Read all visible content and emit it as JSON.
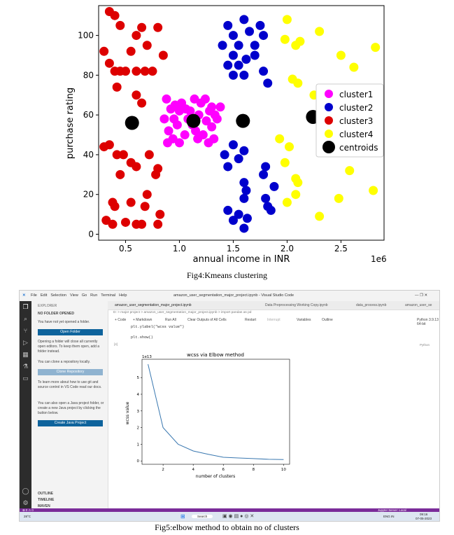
{
  "figure1": {
    "caption": "Fig4:Kmeans clustering",
    "chart_data": {
      "type": "scatter",
      "xlabel": "annual income in INR",
      "ylabel": "purchase rating",
      "x_offset_label": "1e6",
      "xticks": [
        "0.5",
        "1.0",
        "1.5",
        "2.0",
        "2.5"
      ],
      "yticks": [
        "0",
        "20",
        "40",
        "60",
        "80",
        "100"
      ],
      "xlim": [
        0.25,
        2.9
      ],
      "ylim": [
        -3,
        115
      ],
      "legend_position": "center-right",
      "series": [
        {
          "name": "cluster1",
          "color": "#ff00ff",
          "points": [
            [
              0.88,
              68
            ],
            [
              0.92,
              63
            ],
            [
              0.95,
              58
            ],
            [
              0.98,
              55
            ],
            [
              1.0,
              62
            ],
            [
              1.02,
              66
            ],
            [
              1.05,
              50
            ],
            [
              1.08,
              58
            ],
            [
              1.1,
              62
            ],
            [
              1.12,
              55
            ],
            [
              1.15,
              52
            ],
            [
              1.18,
              60
            ],
            [
              1.2,
              66
            ],
            [
              1.22,
              50
            ],
            [
              1.25,
              57
            ],
            [
              1.28,
              62
            ],
            [
              1.3,
              54
            ],
            [
              1.32,
              48
            ],
            [
              1.35,
              58
            ],
            [
              1.38,
              64
            ],
            [
              0.86,
              58
            ],
            [
              0.9,
              52
            ],
            [
              0.94,
              48
            ],
            [
              1.0,
              46
            ],
            [
              1.06,
              63
            ],
            [
              1.14,
              68
            ],
            [
              1.24,
              68
            ],
            [
              1.3,
              64
            ],
            [
              1.33,
              60
            ],
            [
              0.96,
              65
            ],
            [
              1.17,
              48
            ],
            [
              1.27,
              46
            ],
            [
              0.89,
              46
            ]
          ]
        },
        {
          "name": "cluster2",
          "color": "#0000cc",
          "points": [
            [
              1.45,
              105
            ],
            [
              1.5,
              100
            ],
            [
              1.55,
              95
            ],
            [
              1.6,
              108
            ],
            [
              1.65,
              102
            ],
            [
              1.7,
              95
            ],
            [
              1.75,
              105
            ],
            [
              1.78,
              100
            ],
            [
              1.5,
              90
            ],
            [
              1.55,
              85
            ],
            [
              1.45,
              85
            ],
            [
              1.6,
              80
            ],
            [
              1.62,
              88
            ],
            [
              1.78,
              82
            ],
            [
              1.82,
              76
            ],
            [
              1.42,
              40
            ],
            [
              1.5,
              45
            ],
            [
              1.55,
              38
            ],
            [
              1.6,
              42
            ],
            [
              1.45,
              34
            ],
            [
              1.78,
              30
            ],
            [
              1.8,
              34
            ],
            [
              1.6,
              26
            ],
            [
              1.62,
              22
            ],
            [
              1.6,
              18
            ],
            [
              1.82,
              14
            ],
            [
              1.85,
              12
            ],
            [
              1.8,
              18
            ],
            [
              1.45,
              12
            ],
            [
              1.5,
              7
            ],
            [
              1.55,
              10
            ],
            [
              1.6,
              3
            ],
            [
              1.63,
              8
            ],
            [
              1.88,
              24
            ],
            [
              1.7,
              90
            ],
            [
              1.5,
              80
            ],
            [
              1.4,
              95
            ]
          ]
        },
        {
          "name": "cluster3",
          "color": "#dd0000",
          "points": [
            [
              0.35,
              112
            ],
            [
              0.4,
              110
            ],
            [
              0.45,
              105
            ],
            [
              0.3,
              92
            ],
            [
              0.35,
              86
            ],
            [
              0.4,
              82
            ],
            [
              0.45,
              82
            ],
            [
              0.5,
              82
            ],
            [
              0.55,
              92
            ],
            [
              0.6,
              100
            ],
            [
              0.65,
              104
            ],
            [
              0.7,
              95
            ],
            [
              0.75,
              82
            ],
            [
              0.8,
              104
            ],
            [
              0.85,
              90
            ],
            [
              0.6,
              82
            ],
            [
              0.68,
              82
            ],
            [
              0.42,
              74
            ],
            [
              0.6,
              70
            ],
            [
              0.65,
              66
            ],
            [
              0.3,
              44
            ],
            [
              0.35,
              45
            ],
            [
              0.42,
              40
            ],
            [
              0.48,
              40
            ],
            [
              0.55,
              36
            ],
            [
              0.6,
              34
            ],
            [
              0.72,
              40
            ],
            [
              0.78,
              30
            ],
            [
              0.8,
              33
            ],
            [
              0.45,
              30
            ],
            [
              0.38,
              16
            ],
            [
              0.4,
              14
            ],
            [
              0.55,
              16
            ],
            [
              0.7,
              20
            ],
            [
              0.68,
              14
            ],
            [
              0.32,
              7
            ],
            [
              0.38,
              5
            ],
            [
              0.5,
              6
            ],
            [
              0.6,
              5
            ],
            [
              0.65,
              5
            ],
            [
              0.82,
              10
            ],
            [
              0.8,
              5
            ]
          ]
        },
        {
          "name": "cluster4",
          "color": "#ffff00",
          "points": [
            [
              2.0,
              108
            ],
            [
              2.3,
              102
            ],
            [
              1.98,
              98
            ],
            [
              2.08,
              95
            ],
            [
              2.5,
              90
            ],
            [
              2.62,
              84
            ],
            [
              2.82,
              94
            ],
            [
              2.05,
              78
            ],
            [
              2.1,
              76
            ],
            [
              2.25,
              70
            ],
            [
              2.3,
              60
            ],
            [
              2.02,
              44
            ],
            [
              1.98,
              36
            ],
            [
              2.08,
              28
            ],
            [
              2.1,
              26
            ],
            [
              2.08,
              20
            ],
            [
              2.0,
              16
            ],
            [
              2.58,
              32
            ],
            [
              2.8,
              22
            ],
            [
              2.48,
              18
            ],
            [
              2.3,
              9
            ],
            [
              2.12,
              97
            ],
            [
              1.93,
              48
            ]
          ]
        },
        {
          "name": "centroids",
          "color": "#000000",
          "points": [
            [
              0.56,
              56
            ],
            [
              1.13,
              57
            ],
            [
              1.59,
              57
            ],
            [
              2.24,
              59
            ]
          ]
        }
      ]
    }
  },
  "figure2": {
    "caption": "Fig5:elbow method to obtain no of clusters",
    "window_title": "amazon_user_segmentation_major_project.ipynb - Visual Studio Code",
    "menu": [
      "File",
      "Edit",
      "Selection",
      "View",
      "Go",
      "Run",
      "Terminal",
      "Help"
    ],
    "tabs": [
      "amazon_user_segmentation_major_project.ipynb",
      "Data Preprocessing Working Copy.ipynb",
      "data_process.ipynb",
      "amazon_user_se"
    ],
    "breadcrumb": "D: > major project > amazon_user_segmentation_major_project.ipynb > import pandas as pd",
    "toolbar": [
      "+ Code",
      "+ Markdown",
      "Run All",
      "Clear Outputs of All Cells",
      "Restart",
      "Interrupt",
      "Variables",
      "Outline"
    ],
    "kernel": "Python 3.9.13 64-bit",
    "code_lines": [
      "plt.ylabel(\"wcss value\")",
      "plt.show()"
    ],
    "cell_lang": "Python",
    "cell_index": "[4]",
    "sidebar": {
      "header": "EXPLORER",
      "section": "NO FOLDER OPENED",
      "text1": "You have not yet opened a folder.",
      "open_folder": "Open Folder",
      "text2": "Opening a folder will close all currently open editors. To keep them open, add a folder instead.",
      "text3": "You can clone a repository locally.",
      "clone": "Clone Repository",
      "text4": "To learn more about how to use git and source control in VS Code read our docs.",
      "text5": "You can also open a Java project folder, or create a new Java project by clicking the button below.",
      "java": "Create Java Project",
      "outline": "OUTLINE",
      "timeline": "TIMELINE",
      "maven": "MAVEN"
    },
    "status_left": "⊗ 0 ⚠ 0",
    "status_right": "Jupyter Server: Local",
    "taskbar": {
      "weather": "28°C",
      "search": "Search",
      "lang": "ENG IN",
      "time": "09:16",
      "date": "07-05-2023"
    },
    "chart_data": {
      "type": "line",
      "title": "wcss via Elbow method",
      "xlabel": "number of clusters",
      "ylabel": "wcss value",
      "y_offset_label": "1e13",
      "xticks": [
        "2",
        "4",
        "6",
        "8",
        "10"
      ],
      "yticks": [
        "0",
        "1",
        "2",
        "3",
        "4",
        "5"
      ],
      "xlim": [
        0.6,
        10.4
      ],
      "ylim": [
        -0.2,
        6.1
      ],
      "color": "#3a78b0",
      "x": [
        1,
        2,
        3,
        4,
        5,
        6,
        7,
        8,
        9,
        10
      ],
      "y": [
        5.8,
        2.0,
        1.0,
        0.6,
        0.4,
        0.22,
        0.18,
        0.14,
        0.1,
        0.08
      ]
    }
  }
}
